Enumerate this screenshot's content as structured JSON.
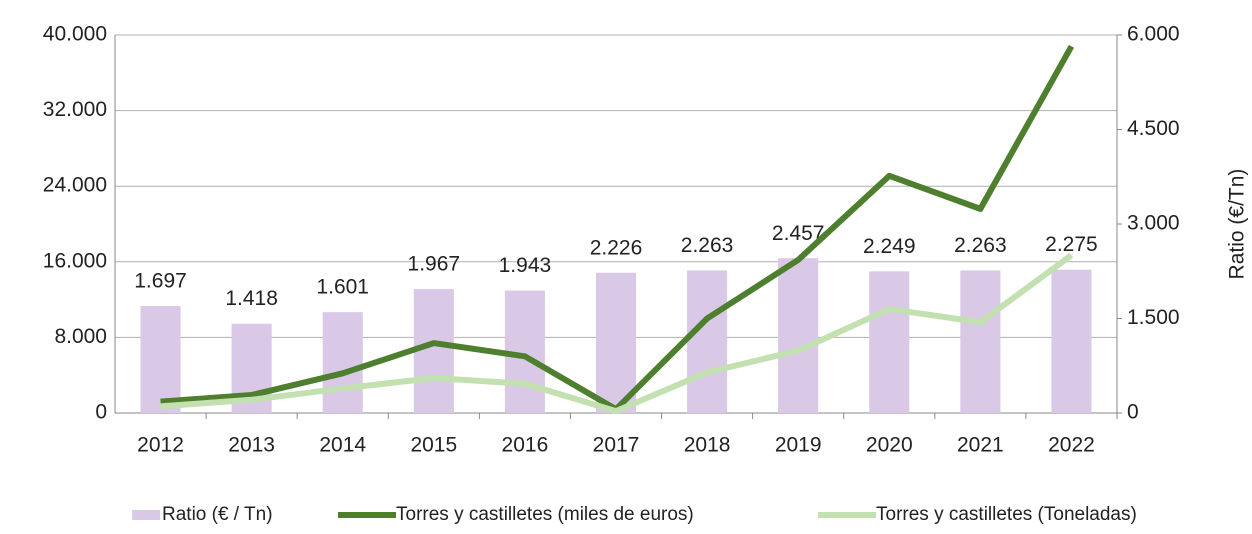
{
  "chart_data": {
    "type": "bar",
    "categories": [
      "2012",
      "2013",
      "2014",
      "2015",
      "2016",
      "2017",
      "2018",
      "2019",
      "2020",
      "2021",
      "2022"
    ],
    "series": [
      {
        "name": "Ratio (€ / Tn)",
        "type": "bar",
        "axis": "y2",
        "color": "#d9c9e6",
        "values": [
          1697,
          1418,
          1601,
          1967,
          1943,
          2226,
          2263,
          2457,
          2249,
          2263,
          2275
        ],
        "value_labels": [
          "1.697",
          "1.418",
          "1.601",
          "1.967",
          "1.943",
          "2.226",
          "2.263",
          "2.457",
          "2.249",
          "2.263",
          "2.275"
        ]
      },
      {
        "name": "Torres y castilletes (miles de euros)",
        "type": "line",
        "color": "#4e7f2e",
        "values": [
          1200,
          1900,
          4200,
          7400,
          6000,
          400,
          10000,
          16200,
          25100,
          21600,
          38800
        ]
      },
      {
        "name": "Torres y castilletes (Toneladas)",
        "type": "line",
        "color": "#c3e0b0",
        "values": [
          700,
          1400,
          2600,
          3700,
          3100,
          200,
          4300,
          6600,
          11000,
          9600,
          16700
        ]
      }
    ],
    "ylim": [
      0,
      40000
    ],
    "yticks": [
      0,
      {
        "value": 8000,
        "label": "8.000"
      },
      {
        "value": 16000,
        "label": "16.000"
      },
      {
        "value": 24000,
        "label": "24.000"
      },
      {
        "value": 32000,
        "label": "32.000"
      },
      {
        "value": 40000,
        "label": "40.000"
      }
    ],
    "y2lim": [
      0,
      6000
    ],
    "y2ticks": [
      0,
      {
        "value": 1500,
        "label": "1.500"
      },
      {
        "value": 3000,
        "label": "3.000"
      },
      {
        "value": 4500,
        "label": "4.500"
      },
      {
        "value": 6000,
        "label": "6.000"
      }
    ],
    "y2label": "Ratio (€/Tn)",
    "grid": true,
    "legend": "bottom"
  }
}
